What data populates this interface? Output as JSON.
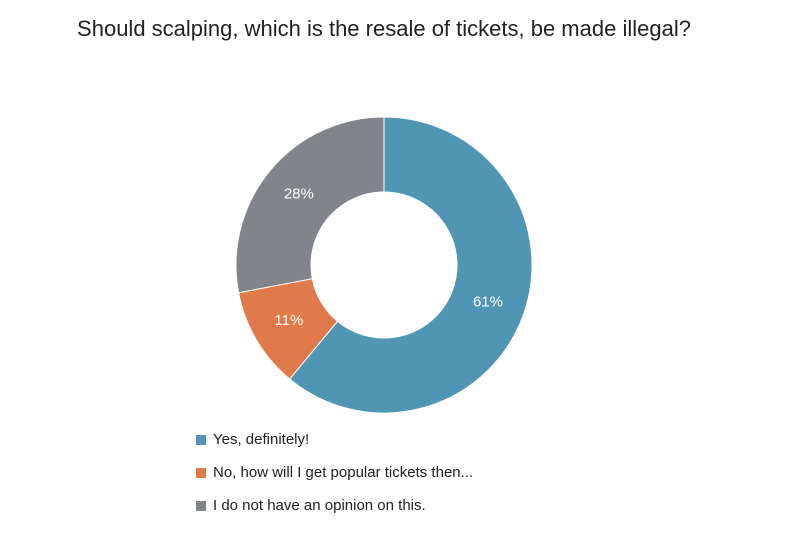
{
  "chart_data": {
    "type": "donut",
    "title": "Should scalping, which is the resale of tickets, be made illegal?",
    "categories": [
      "Yes, definitely!",
      "No, how will I get popular tickets then...",
      "I do not have an opinion on this."
    ],
    "values": [
      61,
      11,
      28
    ],
    "value_labels": [
      "61%",
      "11%",
      "28%"
    ],
    "colors": [
      "#5096b4",
      "#e07a4a",
      "#818489"
    ],
    "legend": "bottom"
  }
}
